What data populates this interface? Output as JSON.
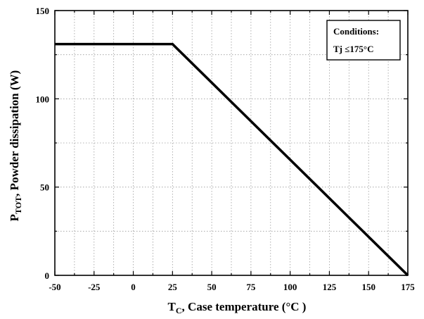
{
  "chart_data": {
    "type": "line",
    "title": "",
    "xlabel_main": "T",
    "xlabel_sub": "C",
    "xlabel_rest": ", Case temperature (°C )",
    "ylabel_main": "P",
    "ylabel_sub": "TOT",
    "ylabel_rest": ", Powder dissipation (W)",
    "xlim": [
      -50,
      175
    ],
    "ylim": [
      0,
      150
    ],
    "x_ticks": [
      -50,
      -25,
      0,
      25,
      50,
      75,
      100,
      125,
      150,
      175
    ],
    "x_tick_labels": [
      "-50",
      "-25",
      "0",
      "25",
      "50",
      "75",
      "100",
      "125",
      "150",
      "175"
    ],
    "y_ticks": [
      0,
      50,
      100,
      150
    ],
    "y_tick_labels": [
      "0",
      "50",
      "100",
      "150"
    ],
    "grid": true,
    "legend_position": "top-right",
    "legend": {
      "line1": "Conditions:",
      "line2": "Tj ≤175°C"
    },
    "series": [
      {
        "x": [
          -50,
          25,
          175
        ],
        "y": [
          131,
          131,
          0
        ],
        "color": "#000000"
      }
    ]
  }
}
